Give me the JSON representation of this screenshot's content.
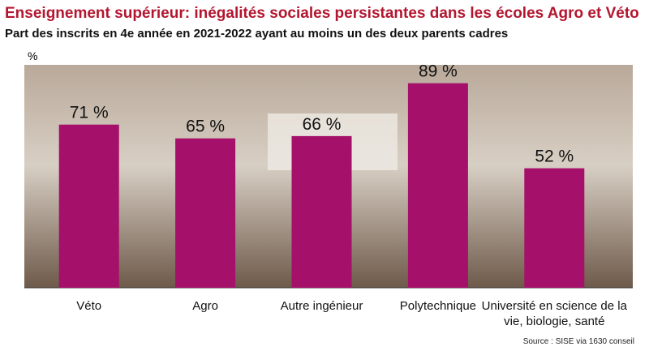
{
  "chart_data": {
    "type": "bar",
    "title": "Enseignement supérieur: inégalités sociales persistantes dans les écoles Agro et Véto",
    "subtitle": "Part des inscrits en 4e année en 2021-2022 ayant au moins un des deux parents cadres",
    "y_label": "%",
    "categories": [
      "Véto",
      "Agro",
      "Autre ingénieur",
      "Polytechnique",
      "Université en science de la vie, biologie, santé"
    ],
    "values": [
      71,
      65,
      66,
      89,
      52
    ],
    "value_labels": [
      "71 %",
      "65 %",
      "66 %",
      "89 %",
      "52 %"
    ],
    "color": "#a5106a",
    "ylim": [
      0,
      97
    ],
    "source": "Source : SISE via 1630 conseil"
  }
}
